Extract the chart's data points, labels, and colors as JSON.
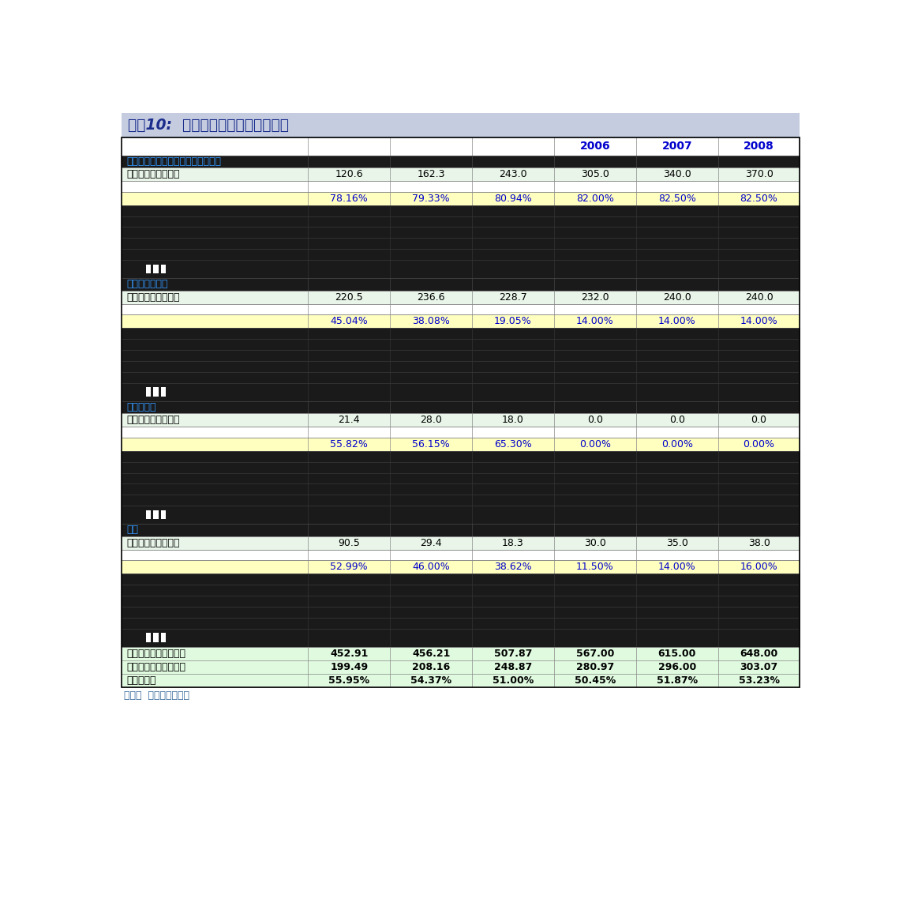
{
  "title": "图表10:  医药工业主营产品盈利预测",
  "source": "来源：  国金证券研究所",
  "year_header_color": "#0000CC",
  "sections": [
    {
      "name": "联邦止咳露（复方福尔可定口服液）",
      "sales": [
        "120.6",
        "162.3",
        "243.0",
        "305.0",
        "340.0",
        "370.0"
      ],
      "margin": [
        "78.16%",
        "79.33%",
        "80.94%",
        "82.00%",
        "82.50%",
        "82.50%"
      ],
      "n_dark": 5,
      "n_bar_subcols": 3
    },
    {
      "name": "头孢类系列产品",
      "sales": [
        "220.5",
        "236.6",
        "228.7",
        "232.0",
        "240.0",
        "240.0"
      ],
      "margin": [
        "45.04%",
        "38.08%",
        "19.05%",
        "14.00%",
        "14.00%",
        "14.00%"
      ],
      "n_dark": 5,
      "n_bar_subcols": 3
    },
    {
      "name": "婴儿滴眼液",
      "sales": [
        "21.4",
        "28.0",
        "18.0",
        "0.0",
        "0.0",
        "0.0"
      ],
      "margin": [
        "55.82%",
        "56.15%",
        "65.30%",
        "0.00%",
        "0.00%",
        "0.00%"
      ],
      "n_dark": 5,
      "n_bar_subcols": 3
    },
    {
      "name": "其他",
      "sales": [
        "90.5",
        "29.4",
        "18.3",
        "30.0",
        "35.0",
        "38.0"
      ],
      "margin": [
        "52.99%",
        "46.00%",
        "38.62%",
        "11.50%",
        "14.00%",
        "16.00%"
      ],
      "n_dark": 5,
      "n_bar_subcols": 3
    }
  ],
  "totals": {
    "labels": [
      "销售总收入（百万元）",
      "销售总成本（百万元）",
      "平均毛利率"
    ],
    "values": [
      [
        "452.91",
        "456.21",
        "507.87",
        "567.00",
        "615.00",
        "648.00"
      ],
      [
        "199.49",
        "208.16",
        "248.87",
        "280.97",
        "296.00",
        "303.07"
      ],
      [
        "55.95%",
        "54.37%",
        "51.00%",
        "50.45%",
        "51.87%",
        "53.23%"
      ]
    ]
  },
  "colors": {
    "title_bg": "#C5CCE0",
    "white_row": "#FFFFFF",
    "light_green": "#E8F5E8",
    "light_yellow": "#FFFFC0",
    "dark_row": "#1A1A1A",
    "total_bg": "#DFFADF",
    "border": "#888888"
  }
}
